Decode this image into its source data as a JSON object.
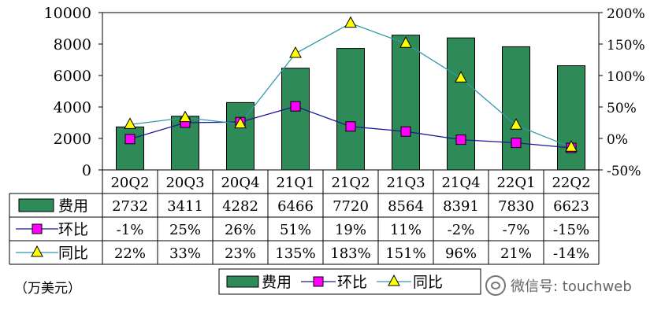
{
  "chart_data": {
    "type": "bar",
    "categories": [
      "20Q2",
      "20Q3",
      "20Q4",
      "21Q1",
      "21Q2",
      "21Q3",
      "21Q4",
      "22Q1",
      "22Q2"
    ],
    "y_left": {
      "ticks": [
        "0",
        "2000",
        "4000",
        "6000",
        "8000",
        "10000"
      ],
      "ylim": [
        0,
        10000
      ]
    },
    "y_right": {
      "ticks": [
        "-50%",
        "0%",
        "50%",
        "100%",
        "150%",
        "200%"
      ],
      "ylim": [
        -50,
        200
      ]
    },
    "series": [
      {
        "name": "费用",
        "type": "bar",
        "axis": "left",
        "color": "#2e8b57",
        "values": [
          2732,
          3411,
          4282,
          6466,
          7720,
          8564,
          8391,
          7830,
          6623
        ],
        "labels": [
          "2732",
          "3411",
          "4282",
          "6466",
          "7720",
          "8564",
          "8391",
          "7830",
          "6623"
        ]
      },
      {
        "name": "环比",
        "type": "line",
        "axis": "right",
        "color": "#1a1a99",
        "marker": "square",
        "marker_color": "#ff00ff",
        "values": [
          -1,
          25,
          26,
          51,
          19,
          11,
          -2,
          -7,
          -15
        ],
        "labels": [
          "-1%",
          "25%",
          "26%",
          "51%",
          "19%",
          "11%",
          "-2%",
          "-7%",
          "-15%"
        ]
      },
      {
        "name": "同比",
        "type": "line",
        "axis": "right",
        "color": "#3399aa",
        "marker": "triangle",
        "marker_color": "#ffff00",
        "values": [
          22,
          33,
          23,
          135,
          183,
          151,
          96,
          21,
          -14
        ],
        "labels": [
          "22%",
          "33%",
          "23%",
          "135%",
          "183%",
          "151%",
          "96%",
          "21%",
          "-14%"
        ]
      }
    ],
    "legend_position": "bottom",
    "grid": false
  },
  "unit_label": "（万美元）",
  "watermark": "微信号: touchweb"
}
